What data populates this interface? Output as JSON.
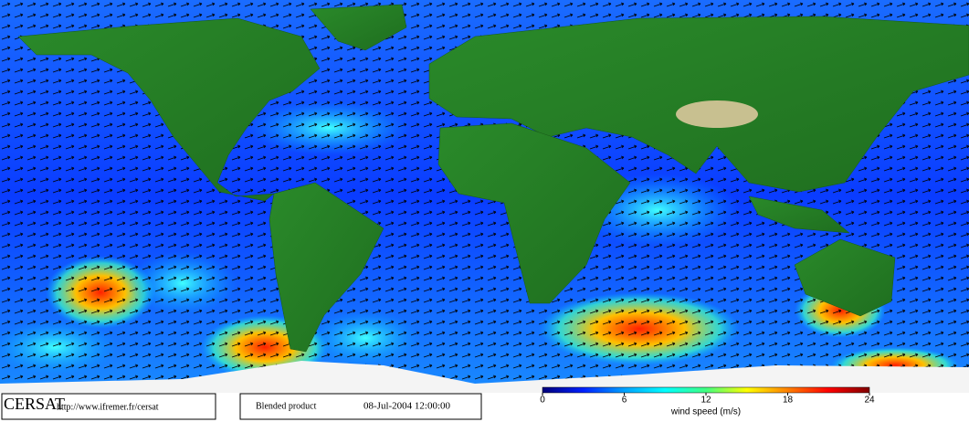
{
  "footer": {
    "logo": "CERSAT",
    "url": "http://www.ifremer.fr/cersat",
    "product": "Blended product",
    "date": "08-Jul-2004 12:00:00"
  },
  "colorbar": {
    "label": "wind speed (m/s)",
    "lim": [
      0,
      24
    ],
    "ticks": [
      0,
      6,
      12,
      18,
      24
    ],
    "colors": [
      "#00007a",
      "#0020ff",
      "#00a0ff",
      "#00ffff",
      "#40ff80",
      "#ffff00",
      "#ff8000",
      "#ff0000",
      "#800000"
    ]
  }
}
